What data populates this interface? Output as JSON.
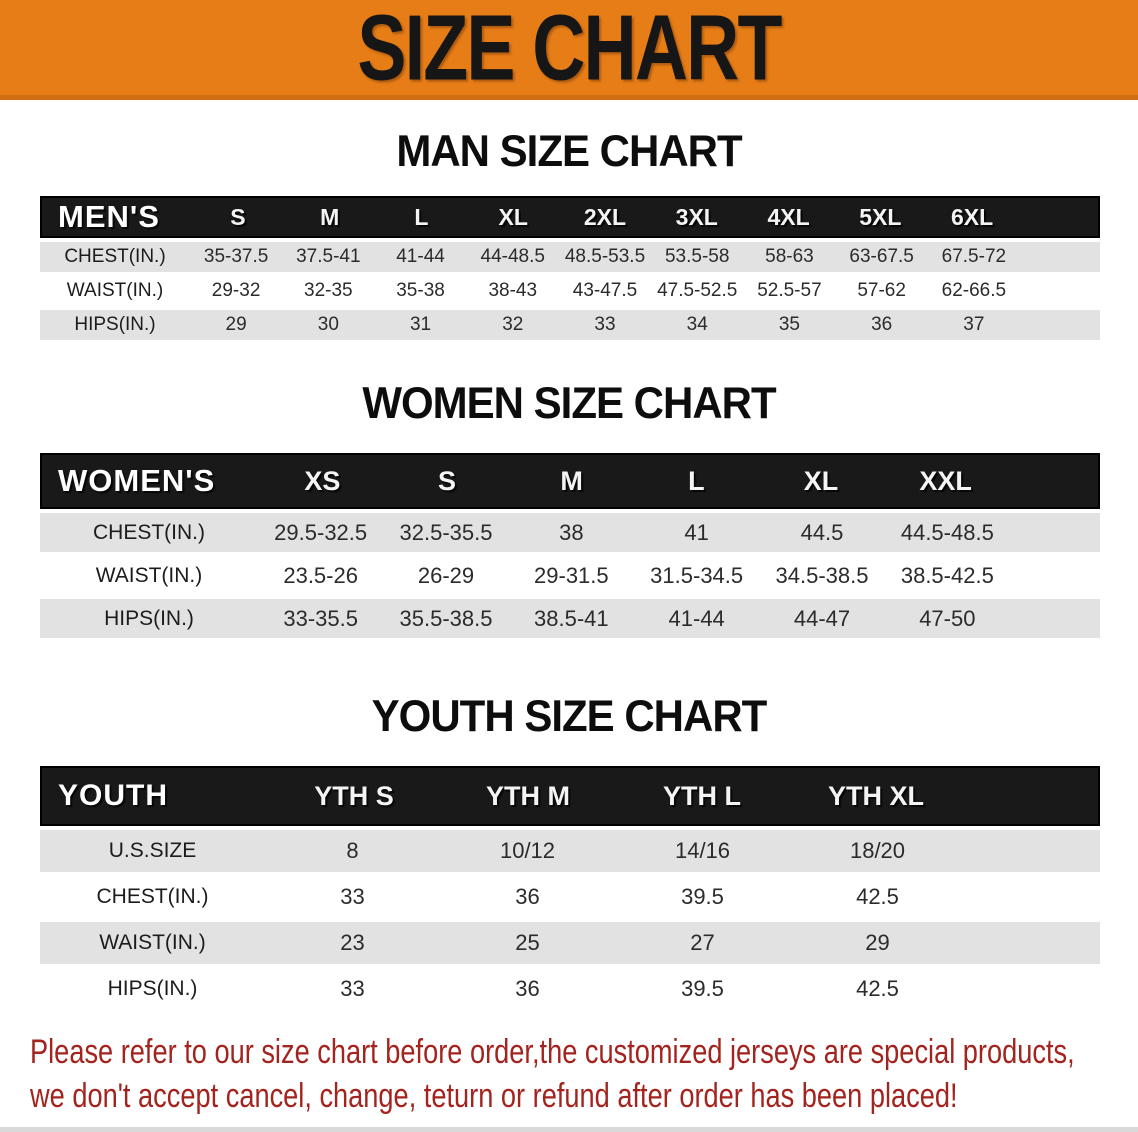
{
  "banner": {
    "title": "SIZE CHART"
  },
  "colors": {
    "banner-bg": "#E67D17",
    "banner-edge": "#CE6E10",
    "banner-fg": "#161616",
    "header-bg": "#191919",
    "stripe": "#E2E2E2",
    "cell-fg": "#2b2b2b",
    "disclaimer-fg": "#A3241F"
  },
  "sections": [
    {
      "title": "MAN SIZE CHART",
      "header_label": "MEN'S",
      "columns": [
        "S",
        "M",
        "L",
        "XL",
        "2XL",
        "3XL",
        "4XL",
        "5XL",
        "6XL"
      ],
      "rows": [
        {
          "label": "CHEST(IN.)",
          "values": [
            "35-37.5",
            "37.5-41",
            "41-44",
            "44-48.5",
            "48.5-53.5",
            "53.5-58",
            "58-63",
            "63-67.5",
            "67.5-72"
          ]
        },
        {
          "label": "WAIST(IN.)",
          "values": [
            "29-32",
            "32-35",
            "35-38",
            "38-43",
            "43-47.5",
            "47.5-52.5",
            "52.5-57",
            "57-62",
            "62-66.5"
          ]
        },
        {
          "label": "HIPS(IN.)",
          "values": [
            "29",
            "30",
            "31",
            "32",
            "33",
            "34",
            "35",
            "36",
            "37"
          ]
        }
      ]
    },
    {
      "title": "WOMEN SIZE CHART",
      "header_label": "WOMEN'S",
      "columns": [
        "XS",
        "S",
        "M",
        "L",
        "XL",
        "XXL"
      ],
      "rows": [
        {
          "label": "CHEST(IN.)",
          "values": [
            "29.5-32.5",
            "32.5-35.5",
            "38",
            "41",
            "44.5",
            "44.5-48.5"
          ]
        },
        {
          "label": "WAIST(IN.)",
          "values": [
            "23.5-26",
            "26-29",
            "29-31.5",
            "31.5-34.5",
            "34.5-38.5",
            "38.5-42.5"
          ]
        },
        {
          "label": "HIPS(IN.)",
          "values": [
            "33-35.5",
            "35.5-38.5",
            "38.5-41",
            "41-44",
            "44-47",
            "47-50"
          ]
        }
      ]
    },
    {
      "title": "YOUTH SIZE CHART",
      "header_label": "YOUTH",
      "columns": [
        "YTH S",
        "YTH M",
        "YTH L",
        "YTH XL"
      ],
      "rows": [
        {
          "label": "U.S.SIZE",
          "values": [
            "8",
            "10/12",
            "14/16",
            "18/20"
          ]
        },
        {
          "label": "CHEST(IN.)",
          "values": [
            "33",
            "36",
            "39.5",
            "42.5"
          ]
        },
        {
          "label": "WAIST(IN.)",
          "values": [
            "23",
            "25",
            "27",
            "29"
          ]
        },
        {
          "label": "HIPS(IN.)",
          "values": [
            "33",
            "36",
            "39.5",
            "42.5"
          ]
        }
      ]
    }
  ],
  "disclaimer": {
    "line1": "Please refer to our size chart before order,the customized jerseys are special products,",
    "line2": "we don't accept cancel, change, teturn or refund after order has been placed!"
  }
}
